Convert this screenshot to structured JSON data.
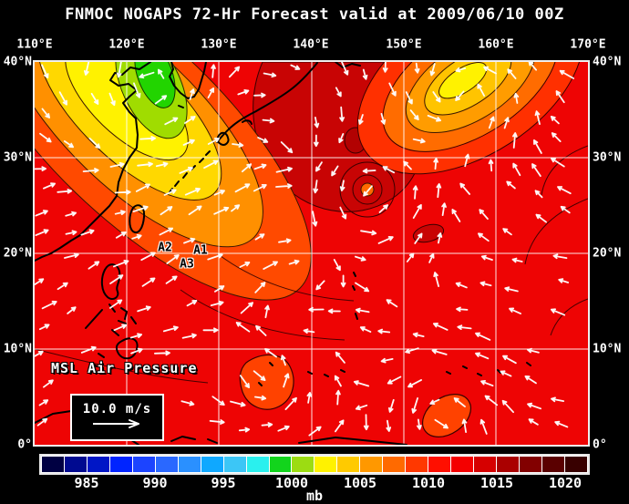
{
  "title": "FNMOC NOGAPS 72-Hr Forecast valid at 2009/06/10 00Z",
  "axes": {
    "lon_ticks": [
      "110°E",
      "120°E",
      "130°E",
      "140°E",
      "150°E",
      "160°E",
      "170°E"
    ],
    "lat_ticks": [
      "40°N",
      "30°N",
      "20°N",
      "10°N",
      "0°"
    ]
  },
  "overlays": {
    "field_label": "MSL Air Pressure",
    "wind_speed_legend": "10.0 m/s",
    "storm_labels": [
      {
        "id": "A1"
      },
      {
        "id": "A2"
      },
      {
        "id": "A3"
      }
    ]
  },
  "colorbar": {
    "unit": "mb",
    "ticks": [
      "985",
      "990",
      "995",
      "1000",
      "1005",
      "1010",
      "1015",
      "1020"
    ],
    "colors": [
      "#000042",
      "#000a90",
      "#0016c6",
      "#0024ff",
      "#1c44ff",
      "#2a68ff",
      "#2a90ff",
      "#0fa8ff",
      "#3cc6f6",
      "#2af0ee",
      "#12d41c",
      "#9cdc12",
      "#fff200",
      "#ffca00",
      "#ff9800",
      "#ff6a00",
      "#ff3800",
      "#ff0f00",
      "#f40000",
      "#d60000",
      "#aa0000",
      "#820000",
      "#5a0000",
      "#380000"
    ]
  },
  "chart_data": {
    "type": "heatmap",
    "title": "FNMOC NOGAPS 72-Hr Forecast valid at 2009/06/10 00Z",
    "field": "MSL Air Pressure",
    "unit": "mb",
    "lon_range_deg_e": [
      110,
      170
    ],
    "lat_range_deg_n": [
      0,
      40
    ],
    "colorbar_mb": [
      985,
      990,
      995,
      1000,
      1005,
      1010,
      1015,
      1020
    ],
    "wind_vector_scale_mps": 10.0,
    "features": [
      {
        "name": "deep low over Yellow Sea / Korea (green core)",
        "lon": 122.5,
        "lat": 38.5,
        "approx_mb": 999
      },
      {
        "name": "elongated low, NE quadrant (yellow core)",
        "lon": 157,
        "lat": 38,
        "approx_mb": 1004
      },
      {
        "name": "broad high / ridge, central Pacific 130-145E 25-35N",
        "lon": 137,
        "lat": 30,
        "approx_mb": 1013
      },
      {
        "name": "weak circulation near invest A1",
        "lon": 144.5,
        "lat": 26.5,
        "approx_mb": 1009
      },
      {
        "name": "weak low near 136E 6N",
        "lon": 136,
        "lat": 6.5,
        "approx_mb": 1008
      },
      {
        "name": "weak low near 155E 3N",
        "lon": 154.5,
        "lat": 3,
        "approx_mb": 1008
      },
      {
        "name": "invest A1 label position",
        "lon": 128,
        "lat": 20.3
      },
      {
        "name": "invest A2 label position",
        "lon": 124.2,
        "lat": 20.6
      },
      {
        "name": "invest A3 label position",
        "lon": 126.5,
        "lat": 18.9
      }
    ]
  }
}
